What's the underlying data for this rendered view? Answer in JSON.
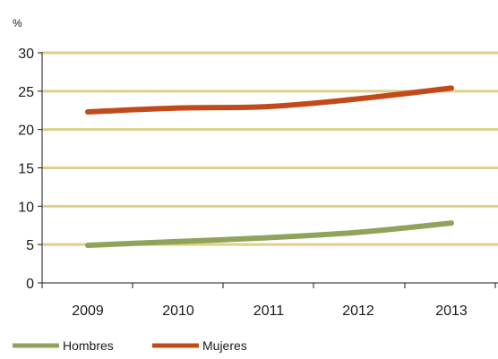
{
  "chart_data": {
    "type": "line",
    "title": "",
    "ylabel": "%",
    "xlabel": "",
    "x": [
      "2009",
      "2010",
      "2011",
      "2012",
      "2013"
    ],
    "ylim": [
      0,
      30
    ],
    "yticks": [
      0,
      5,
      10,
      15,
      20,
      25,
      30
    ],
    "grid": "horizontal",
    "legend": "bottom-left",
    "series": [
      {
        "name": "Hombres",
        "color": "#8fa35a",
        "values": [
          4.9,
          5.4,
          5.9,
          6.6,
          7.8
        ]
      },
      {
        "name": "Mujeres",
        "color": "#c24a1a",
        "values": [
          22.3,
          22.8,
          23.0,
          24.0,
          25.4
        ]
      }
    ],
    "colors": {
      "grid": "#e0cf8a",
      "axis": "#1a1a1a"
    }
  }
}
